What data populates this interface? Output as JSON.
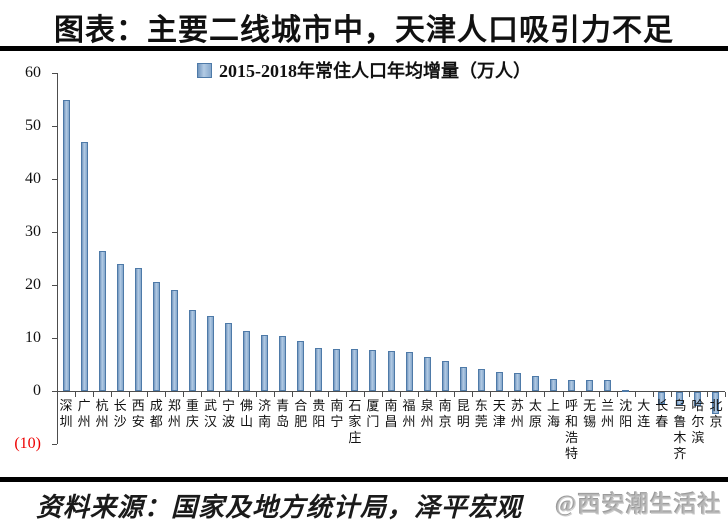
{
  "title": "图表：主要二线城市中，天津人口吸引力不足",
  "legend": "2015-2018年常住人口年均增量（万人）",
  "footer": {
    "source": "资料来源：国家及地方统计局，泽平宏观",
    "watermark": "@西安潮生活社"
  },
  "colors": {
    "bar_fill_edge": "#7195bd",
    "bar_fill_center": "#b3cbe4",
    "bar_border": "#4e7aa8",
    "axis": "#4d4d4d",
    "negative_axis_label": "#ee0000",
    "rule": "#000000",
    "watermark_gray": "#bebebe"
  },
  "y_axis": {
    "tick_labels": [
      "60",
      "50",
      "40",
      "30",
      "20",
      "10",
      "0",
      "(10)"
    ],
    "tick_values": [
      60,
      50,
      40,
      30,
      20,
      10,
      0,
      -10
    ]
  },
  "chart_data": {
    "type": "bar",
    "title": "图表：主要二线城市中，天津人口吸引力不足",
    "legend": [
      "2015-2018年常住人口年均增量（万人）"
    ],
    "legend_position": "top",
    "xlabel": "",
    "ylabel": "",
    "ylim": [
      -10,
      60
    ],
    "grid": false,
    "categories": [
      "深圳",
      "广州",
      "杭州",
      "长沙",
      "西安",
      "成都",
      "郑州",
      "重庆",
      "武汉",
      "宁波",
      "佛山",
      "济南",
      "青岛",
      "合肥",
      "贵阳",
      "南宁",
      "石家庄",
      "厦门",
      "南昌",
      "福州",
      "泉州",
      "南京",
      "昆明",
      "东莞",
      "天津",
      "苏州",
      "太原",
      "上海",
      "呼和浩特",
      "无锡",
      "兰州",
      "沈阳",
      "大连",
      "长春",
      "乌鲁木齐",
      "哈尔滨",
      "北京"
    ],
    "values": [
      55,
      47,
      26.4,
      24,
      23.2,
      20.6,
      19.1,
      15.2,
      14.2,
      12.8,
      11.3,
      10.6,
      10.3,
      9.5,
      8.2,
      8.0,
      7.9,
      7.8,
      7.6,
      7.4,
      6.5,
      5.7,
      4.6,
      4.2,
      3.5,
      3.4,
      2.8,
      2.2,
      2.1,
      2.1,
      2.0,
      0.2,
      0,
      -2.2,
      -2.4,
      -2.6,
      -4.1
    ]
  }
}
